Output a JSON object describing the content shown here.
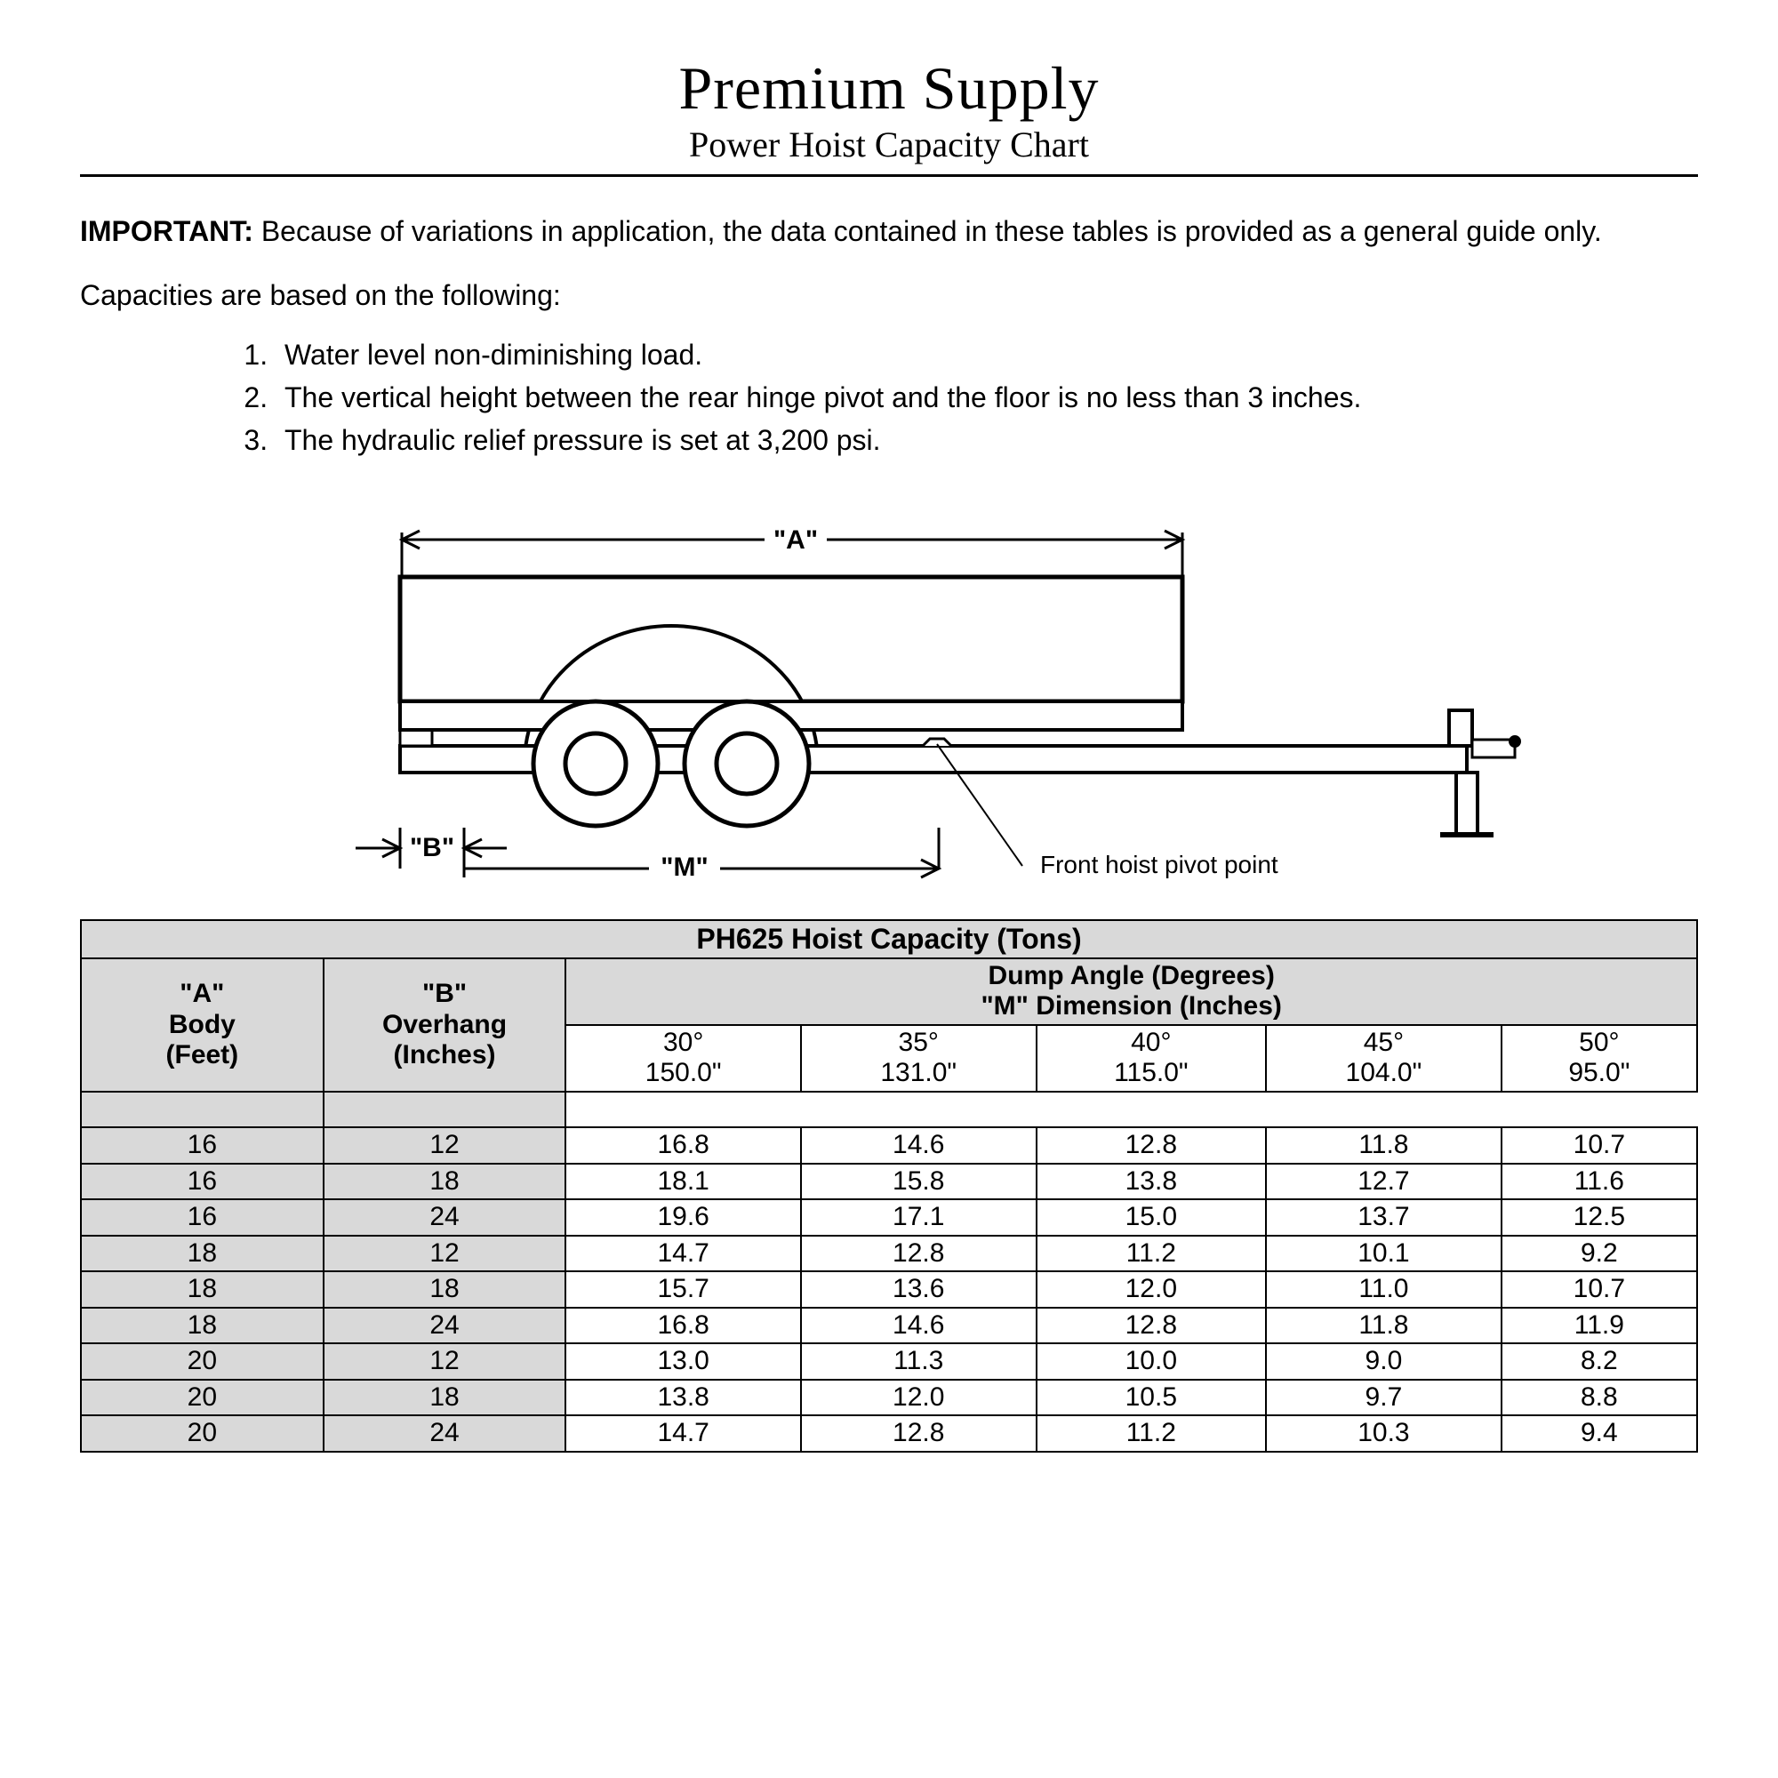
{
  "title": "Premium Supply",
  "subtitle": "Power Hoist Capacity Chart",
  "important_label": "IMPORTANT:",
  "important_text": "  Because of variations in application, the data contained in these tables is provided as a general guide only.",
  "caps_intro": "Capacities are based on the following:",
  "caps_items": [
    "Water level non-diminishing load.",
    "The vertical height between the rear hinge pivot and the floor is no less than 3 inches.",
    "The hydraulic relief pressure is set at 3,200 psi."
  ],
  "diagram": {
    "label_A": "\"A\"",
    "label_B": "\"B\"",
    "label_M": "\"M\"",
    "pivot_label": "Front hoist pivot point",
    "stroke": "#000000",
    "fill": "#ffffff",
    "line_width_main": 2,
    "font_size_label": 30
  },
  "table": {
    "title": "PH625 Hoist Capacity (Tons)",
    "colA_l1": "\"A\"",
    "colA_l2": "Body",
    "colA_l3": "(Feet)",
    "colB_l1": "\"B\"",
    "colB_l2": "Overhang",
    "colB_l3": "(Inches)",
    "dump_l1": "Dump Angle (Degrees)",
    "dump_l2": "\"M\" Dimension (Inches)",
    "angles": [
      {
        "deg": "30°",
        "m": "150.0\""
      },
      {
        "deg": "35°",
        "m": "131.0\""
      },
      {
        "deg": "40°",
        "m": "115.0\""
      },
      {
        "deg": "45°",
        "m": "104.0\""
      },
      {
        "deg": "50°",
        "m": "95.0\""
      }
    ],
    "rows": [
      {
        "a": "16",
        "b": "12",
        "v": [
          "16.8",
          "14.6",
          "12.8",
          "11.8",
          "10.7"
        ]
      },
      {
        "a": "16",
        "b": "18",
        "v": [
          "18.1",
          "15.8",
          "13.8",
          "12.7",
          "11.6"
        ]
      },
      {
        "a": "16",
        "b": "24",
        "v": [
          "19.6",
          "17.1",
          "15.0",
          "13.7",
          "12.5"
        ]
      },
      {
        "a": "18",
        "b": "12",
        "v": [
          "14.7",
          "12.8",
          "11.2",
          "10.1",
          "9.2"
        ]
      },
      {
        "a": "18",
        "b": "18",
        "v": [
          "15.7",
          "13.6",
          "12.0",
          "11.0",
          "10.7"
        ]
      },
      {
        "a": "18",
        "b": "24",
        "v": [
          "16.8",
          "14.6",
          "12.8",
          "11.8",
          "11.9"
        ]
      },
      {
        "a": "20",
        "b": "12",
        "v": [
          "13.0",
          "11.3",
          "10.0",
          "9.0",
          "8.2"
        ]
      },
      {
        "a": "20",
        "b": "18",
        "v": [
          "13.8",
          "12.0",
          "10.5",
          "9.7",
          "8.8"
        ]
      },
      {
        "a": "20",
        "b": "24",
        "v": [
          "14.7",
          "12.8",
          "11.2",
          "10.3",
          "9.4"
        ]
      }
    ],
    "header_bg": "#d9d9d9",
    "border_color": "#000000"
  }
}
